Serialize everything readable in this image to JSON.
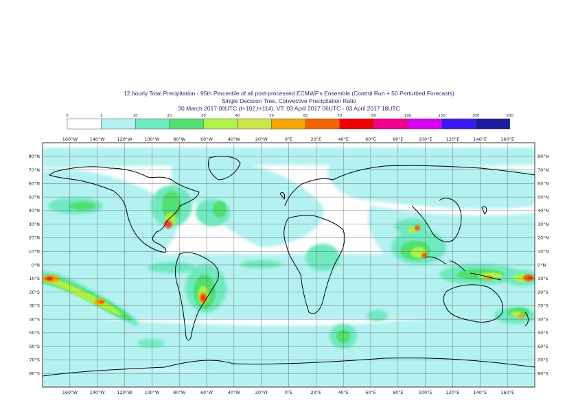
{
  "title": {
    "line1": "12 hourly Total Precipitation - 95th Percentile of all post-processed ECMWF's Ensemble (Control Run + 50 Perturbed Forecasts)",
    "line2": "Single Decision Tree, Convective Precipitation Ratio",
    "line3": "30 March 2017 00UTC (t+102,t+114), VT: 03 April 2017 06UTC - 03 April 2017 18UTC"
  },
  "legend": {
    "thresholds": [
      "0",
      "1",
      "10",
      "20",
      "30",
      "40",
      "50",
      "60",
      "70",
      "80",
      "100",
      "150",
      "300",
      "500"
    ],
    "colors": [
      "#ffffff",
      "#b3f2f0",
      "#6fe9c0",
      "#4fe070",
      "#aef24a",
      "#cde34a",
      "#f7a400",
      "#f26400",
      "#f20000",
      "#f2008c",
      "#d600f2",
      "#3a1af2",
      "#1c1c9e"
    ]
  },
  "map": {
    "lon_labels_top": [
      "160°W",
      "140°W",
      "120°W",
      "100°W",
      "80°W",
      "60°W",
      "40°W",
      "20°W",
      "0°E",
      "20°E",
      "40°E",
      "60°E",
      "80°E",
      "100°E",
      "120°E",
      "140°E",
      "160°E"
    ],
    "lon_labels_bottom": [
      "160°W",
      "140°W",
      "120°W",
      "100°W",
      "80°W",
      "60°W",
      "40°W",
      "20°W",
      "0°E",
      "20°E",
      "40°E",
      "60°E",
      "80°E",
      "100°E",
      "120°E",
      "140°E",
      "160°E"
    ],
    "lat_labels_left": [
      "80°N",
      "70°N",
      "60°N",
      "50°N",
      "40°N",
      "30°N",
      "20°N",
      "10°N",
      "0°N",
      "10°S",
      "20°S",
      "30°S",
      "40°S",
      "50°S",
      "60°S",
      "70°S",
      "80°S"
    ],
    "lat_labels_right": [
      "80°N",
      "70°N",
      "60°N",
      "50°N",
      "40°N",
      "30°N",
      "20°N",
      "10°N",
      "0°N",
      "10°S",
      "20°S",
      "30°S",
      "40°S",
      "50°S",
      "60°S",
      "70°S",
      "80°S"
    ],
    "ocean_color": "#ffffff",
    "grid_color": "#555555",
    "coast_color": "#000000"
  }
}
